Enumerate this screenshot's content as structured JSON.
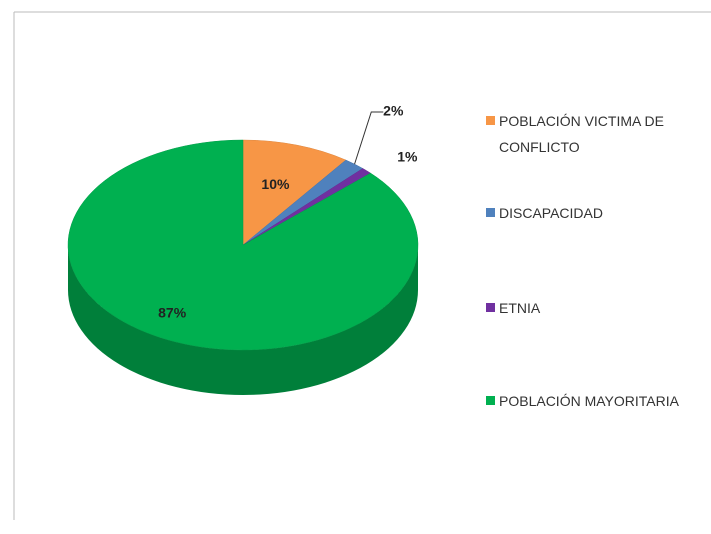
{
  "chart_data": {
    "type": "pie",
    "categories": [
      "POBLACIÓN VICTIMA DE CONFLICTO",
      "DISCAPACIDAD",
      "ETNIA",
      "POBLACIÓN MAYORITARIA"
    ],
    "values": [
      10,
      2,
      1,
      87
    ],
    "value_labels": [
      "10%",
      "2%",
      "1%",
      "87%"
    ],
    "colors": [
      "#f79646",
      "#4f81bd",
      "#7030a0",
      "#00b050"
    ],
    "legend": "right"
  }
}
